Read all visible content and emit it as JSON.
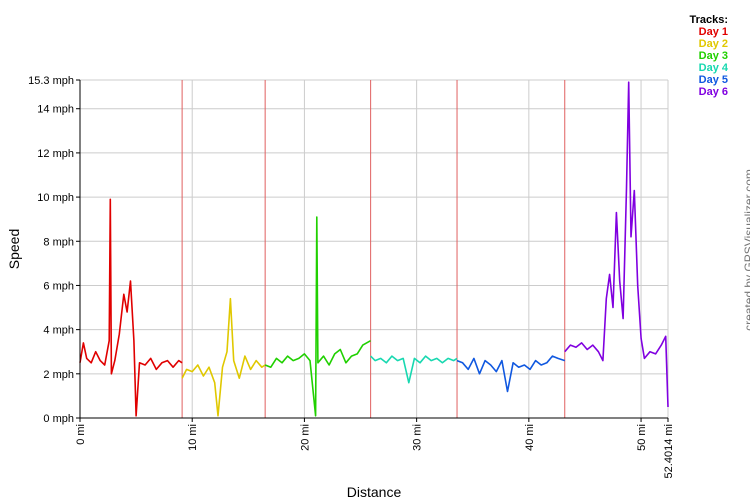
{
  "chart_data": {
    "type": "line",
    "xlabel": "Distance",
    "ylabel": "Speed",
    "xlim": [
      0,
      52.4014
    ],
    "ylim": [
      0,
      15.3
    ],
    "y_ticks": [
      {
        "value": 0,
        "label": "0 mph"
      },
      {
        "value": 2,
        "label": "2 mph"
      },
      {
        "value": 4,
        "label": "4 mph"
      },
      {
        "value": 6,
        "label": "6 mph"
      },
      {
        "value": 8,
        "label": "8 mph"
      },
      {
        "value": 10,
        "label": "10 mph"
      },
      {
        "value": 12,
        "label": "12 mph"
      },
      {
        "value": 14,
        "label": "14 mph"
      },
      {
        "value": 15.3,
        "label": "15.3 mph"
      }
    ],
    "x_ticks": [
      {
        "value": 0,
        "label": "0 mi"
      },
      {
        "value": 10,
        "label": "10 mi"
      },
      {
        "value": 20,
        "label": "20 mi"
      },
      {
        "value": 30,
        "label": "30 mi"
      },
      {
        "value": 40,
        "label": "40 mi"
      },
      {
        "value": 50,
        "label": "50 mi"
      },
      {
        "value": 52.4014,
        "label": "52.4014 mi"
      }
    ],
    "grid": true,
    "legend": {
      "title": "Tracks:",
      "position": "top-right"
    },
    "track_boundaries": [
      9.1,
      16.5,
      25.9,
      33.6,
      43.2
    ],
    "series": [
      {
        "name": "Day 1",
        "color": "#e00000",
        "x_range": [
          0,
          9.1
        ],
        "points": [
          [
            0,
            2.5
          ],
          [
            0.3,
            3.4
          ],
          [
            0.6,
            2.7
          ],
          [
            1,
            2.5
          ],
          [
            1.4,
            3.0
          ],
          [
            1.8,
            2.6
          ],
          [
            2.2,
            2.4
          ],
          [
            2.6,
            3.5
          ],
          [
            2.7,
            9.9
          ],
          [
            2.8,
            2.0
          ],
          [
            3.1,
            2.6
          ],
          [
            3.5,
            3.8
          ],
          [
            3.9,
            5.6
          ],
          [
            4.2,
            4.8
          ],
          [
            4.5,
            6.2
          ],
          [
            4.8,
            3.5
          ],
          [
            5.0,
            0.1
          ],
          [
            5.3,
            2.5
          ],
          [
            5.8,
            2.4
          ],
          [
            6.3,
            2.7
          ],
          [
            6.8,
            2.2
          ],
          [
            7.3,
            2.5
          ],
          [
            7.8,
            2.6
          ],
          [
            8.3,
            2.3
          ],
          [
            8.8,
            2.6
          ],
          [
            9.1,
            2.5
          ]
        ]
      },
      {
        "name": "Day 2",
        "color": "#e0c800",
        "x_range": [
          9.1,
          16.5
        ],
        "points": [
          [
            9.1,
            1.8
          ],
          [
            9.5,
            2.2
          ],
          [
            10,
            2.1
          ],
          [
            10.5,
            2.4
          ],
          [
            11,
            1.9
          ],
          [
            11.5,
            2.3
          ],
          [
            12,
            1.6
          ],
          [
            12.3,
            0.1
          ],
          [
            12.7,
            2.3
          ],
          [
            13.1,
            3.0
          ],
          [
            13.4,
            5.4
          ],
          [
            13.7,
            2.6
          ],
          [
            14.2,
            1.8
          ],
          [
            14.7,
            2.8
          ],
          [
            15.2,
            2.2
          ],
          [
            15.7,
            2.6
          ],
          [
            16.2,
            2.3
          ],
          [
            16.5,
            2.4
          ]
        ]
      },
      {
        "name": "Day 3",
        "color": "#20d000",
        "x_range": [
          16.5,
          25.9
        ],
        "points": [
          [
            16.5,
            2.4
          ],
          [
            17,
            2.3
          ],
          [
            17.5,
            2.7
          ],
          [
            18,
            2.5
          ],
          [
            18.5,
            2.8
          ],
          [
            19,
            2.6
          ],
          [
            19.5,
            2.7
          ],
          [
            20,
            2.9
          ],
          [
            20.5,
            2.6
          ],
          [
            21.0,
            0.1
          ],
          [
            21.1,
            9.1
          ],
          [
            21.2,
            2.5
          ],
          [
            21.7,
            2.8
          ],
          [
            22.2,
            2.4
          ],
          [
            22.7,
            2.9
          ],
          [
            23.2,
            3.1
          ],
          [
            23.7,
            2.5
          ],
          [
            24.2,
            2.8
          ],
          [
            24.7,
            2.9
          ],
          [
            25.2,
            3.3
          ],
          [
            25.9,
            3.5
          ]
        ]
      },
      {
        "name": "Day 4",
        "color": "#18d8b0",
        "x_range": [
          25.9,
          33.6
        ],
        "points": [
          [
            25.9,
            2.8
          ],
          [
            26.3,
            2.6
          ],
          [
            26.8,
            2.7
          ],
          [
            27.3,
            2.5
          ],
          [
            27.8,
            2.8
          ],
          [
            28.3,
            2.6
          ],
          [
            28.8,
            2.7
          ],
          [
            29.3,
            1.6
          ],
          [
            29.8,
            2.7
          ],
          [
            30.3,
            2.5
          ],
          [
            30.8,
            2.8
          ],
          [
            31.3,
            2.6
          ],
          [
            31.8,
            2.7
          ],
          [
            32.3,
            2.5
          ],
          [
            32.8,
            2.7
          ],
          [
            33.3,
            2.6
          ],
          [
            33.6,
            2.7
          ]
        ]
      },
      {
        "name": "Day 5",
        "color": "#1058e0",
        "x_range": [
          33.6,
          43.2
        ],
        "points": [
          [
            33.6,
            2.6
          ],
          [
            34.1,
            2.5
          ],
          [
            34.6,
            2.2
          ],
          [
            35.1,
            2.7
          ],
          [
            35.6,
            2.0
          ],
          [
            36.1,
            2.6
          ],
          [
            36.6,
            2.4
          ],
          [
            37.1,
            2.1
          ],
          [
            37.6,
            2.6
          ],
          [
            38.1,
            1.2
          ],
          [
            38.6,
            2.5
          ],
          [
            39.1,
            2.3
          ],
          [
            39.6,
            2.4
          ],
          [
            40.1,
            2.2
          ],
          [
            40.6,
            2.6
          ],
          [
            41.1,
            2.4
          ],
          [
            41.6,
            2.5
          ],
          [
            42.1,
            2.8
          ],
          [
            42.6,
            2.7
          ],
          [
            43.2,
            2.6
          ]
        ]
      },
      {
        "name": "Day 6",
        "color": "#8000e0",
        "x_range": [
          43.2,
          52.4014
        ],
        "points": [
          [
            43.2,
            3.0
          ],
          [
            43.7,
            3.3
          ],
          [
            44.2,
            3.2
          ],
          [
            44.7,
            3.4
          ],
          [
            45.2,
            3.1
          ],
          [
            45.7,
            3.3
          ],
          [
            46.2,
            3.0
          ],
          [
            46.6,
            2.6
          ],
          [
            46.9,
            5.4
          ],
          [
            47.2,
            6.5
          ],
          [
            47.5,
            5.0
          ],
          [
            47.8,
            9.3
          ],
          [
            48.1,
            6.2
          ],
          [
            48.4,
            4.5
          ],
          [
            48.7,
            10.4
          ],
          [
            48.9,
            15.2
          ],
          [
            49.1,
            8.2
          ],
          [
            49.4,
            10.3
          ],
          [
            49.7,
            6.0
          ],
          [
            50.0,
            3.6
          ],
          [
            50.3,
            2.7
          ],
          [
            50.8,
            3.0
          ],
          [
            51.3,
            2.9
          ],
          [
            51.8,
            3.3
          ],
          [
            52.2,
            3.7
          ],
          [
            52.4014,
            0.5
          ]
        ]
      }
    ]
  }
}
